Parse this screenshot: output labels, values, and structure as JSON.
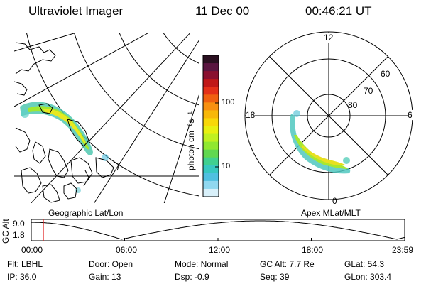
{
  "header": {
    "title": "Ultraviolet Imager",
    "date": "11 Dec 00",
    "time": "00:46:21 UT"
  },
  "colorbar": {
    "label": "photon cm⁻²s⁻¹",
    "ticks": [
      "100",
      "10"
    ],
    "colors": [
      "#2a1020",
      "#5a1540",
      "#8a1030",
      "#c01818",
      "#e43018",
      "#f06010",
      "#f89010",
      "#f8b808",
      "#f8d808",
      "#e8f010",
      "#c0f020",
      "#90e830",
      "#60d850",
      "#40d090",
      "#38c8c0",
      "#50c0e0",
      "#90d8f0",
      "#d8f0fa"
    ]
  },
  "left_panel": {
    "caption": "Geographic Lat/Lon"
  },
  "right_panel": {
    "caption": "Apex MLat/MLT",
    "mlt_labels": {
      "top": "12",
      "left": "18",
      "right": "6",
      "bottom": "0"
    },
    "lat_labels": [
      "60",
      "70",
      "80"
    ]
  },
  "altitude_plot": {
    "ylabel": "GC Alt",
    "yticks": [
      "9.0",
      "1.8"
    ],
    "xticks": [
      "00:00",
      "06:00",
      "12:00",
      "18:00",
      "23:59"
    ],
    "marker_time_hours": 0.77,
    "marker_color": "#e02020",
    "orbit_perigee_hours": [
      5.8,
      23.5
    ],
    "orbit_apogee_hours": [
      14.7
    ]
  },
  "info": {
    "row1": {
      "flt": "Flt: LBHL",
      "door": "Door: Open",
      "mode": "Mode: Normal",
      "gcalt": "GC Alt: 7.7 Re",
      "glat": "GLat:  54.3"
    },
    "row2": {
      "ip": "IP: 36.0",
      "gain": "Gain: 13",
      "dsp": "Dsp:   -0.9",
      "seq": "Seq: 39",
      "glon": "GLon: 303.4"
    }
  }
}
